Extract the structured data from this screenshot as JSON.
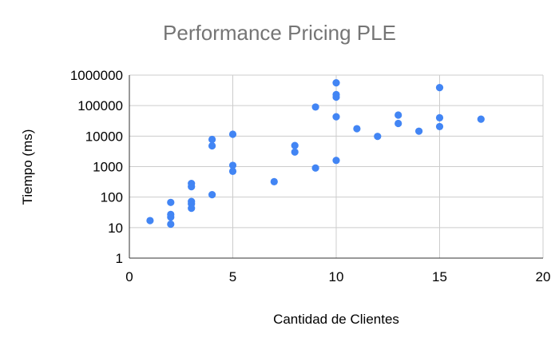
{
  "chart_data": {
    "type": "scatter",
    "title": "Performance Pricing PLE",
    "xlabel": "Cantidad de Clientes",
    "ylabel": "Tiempo (ms)",
    "xlim": [
      0,
      20
    ],
    "ylim": [
      1,
      1000000
    ],
    "yscale": "log",
    "grid": true,
    "legend": "none",
    "color": "#4285f4",
    "x_ticks": [
      "0",
      "5",
      "10",
      "15",
      "20"
    ],
    "y_ticks": [
      "1",
      "10",
      "100",
      "1000",
      "10000",
      "100000",
      "1000000"
    ],
    "series": [
      {
        "points": [
          [
            1,
            17
          ],
          [
            2,
            13
          ],
          [
            2,
            22
          ],
          [
            2,
            27
          ],
          [
            2,
            67
          ],
          [
            3,
            43
          ],
          [
            3,
            60
          ],
          [
            3,
            72
          ],
          [
            3,
            220
          ],
          [
            3,
            280
          ],
          [
            4,
            120
          ],
          [
            4,
            4800
          ],
          [
            4,
            7800
          ],
          [
            5,
            700
          ],
          [
            5,
            1100
          ],
          [
            5,
            11500
          ],
          [
            7,
            320
          ],
          [
            8,
            3000
          ],
          [
            8,
            4900
          ],
          [
            9,
            900
          ],
          [
            9,
            90000
          ],
          [
            10,
            1600
          ],
          [
            10,
            43000
          ],
          [
            10,
            190000
          ],
          [
            10,
            230000
          ],
          [
            10,
            560000
          ],
          [
            11,
            17500
          ],
          [
            12,
            9800
          ],
          [
            13,
            26000
          ],
          [
            13,
            49000
          ],
          [
            14,
            14500
          ],
          [
            15,
            20500
          ],
          [
            15,
            40000
          ],
          [
            15,
            390000
          ],
          [
            17,
            36000
          ]
        ]
      }
    ]
  }
}
